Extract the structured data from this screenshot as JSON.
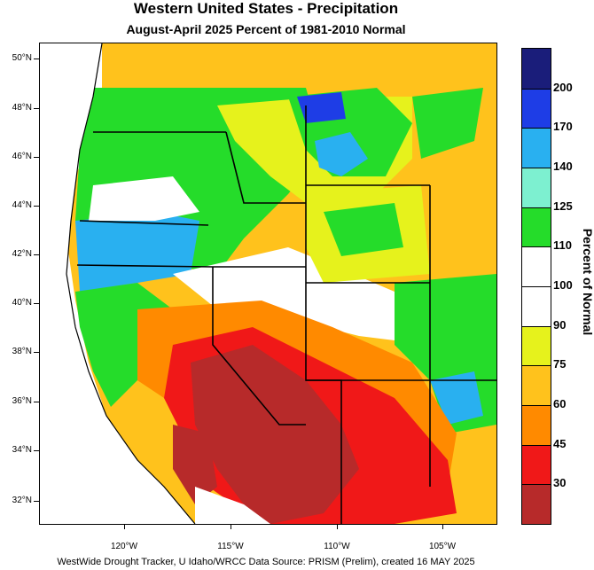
{
  "title": "Western United States - Precipitation",
  "subtitle": "August-April 2025  Percent of 1981-2010 Normal",
  "colorbar": {
    "title": "Percent of Normal",
    "labels": [
      "200",
      "170",
      "140",
      "125",
      "110",
      "100",
      "90",
      "75",
      "60",
      "45",
      "30"
    ],
    "colors": [
      "#1a1d7a",
      "#1e3de6",
      "#29b0f0",
      "#7df0d0",
      "#25dc2a",
      "#ffffff",
      "#ffffff",
      "#e6f21c",
      "#ffc21c",
      "#ff8a00",
      "#f01818",
      "#b72a2a"
    ]
  },
  "latitude_labels": [
    "50°N",
    "48°N",
    "46°N",
    "44°N",
    "42°N",
    "40°N",
    "38°N",
    "36°N",
    "34°N",
    "32°N"
  ],
  "longitude_labels": [
    "120°W",
    "115°W",
    "110°W",
    "105°W"
  ],
  "credit": "WestWide Drought Tracker, U Idaho/WRCC Data Source: PRISM (Prelim), created 16 MAY 2025"
}
